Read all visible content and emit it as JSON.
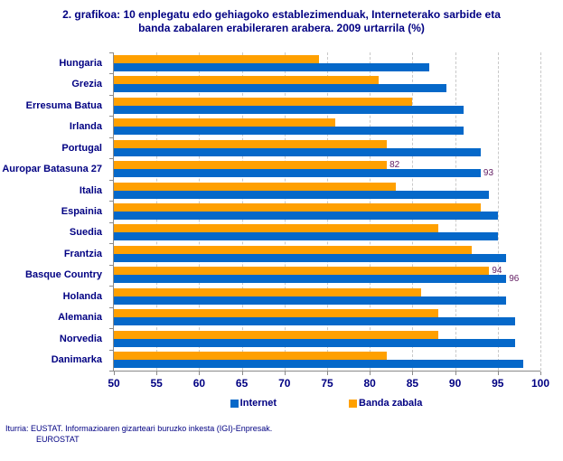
{
  "title": {
    "line1": "2. grafikoa: 10 enplegatu edo gehiagoko establezimenduak, Interneterako sarbide eta",
    "line2": "banda zabalaren erabileraren arabera. 2009 urtarrila (%)"
  },
  "chart_data": {
    "type": "bar",
    "orientation": "horizontal",
    "title": "2. grafikoa: 10 enplegatu edo gehiagoko establezimenduak, Interneterako sarbide eta banda zabalaren erabileraren arabera. 2009 urtarrila (%)",
    "categories": [
      "Hungaria",
      "Grezia",
      "Erresuma Batua",
      "Irlanda",
      "Portugal",
      "Auropar Batasuna 27",
      "Italia",
      "Espainia",
      "Suedia",
      "Frantzia",
      "Basque Country",
      "Holanda",
      "Alemania",
      "Norvedia",
      "Danimarka"
    ],
    "series": [
      {
        "name": "Internet",
        "color": "#0568C9",
        "values": [
          87,
          89,
          91,
          91,
          93,
          93,
          94,
          95,
          95,
          96,
          96,
          96,
          97,
          97,
          98
        ]
      },
      {
        "name": "Banda zabala",
        "color": "#FFA000",
        "values": [
          74,
          81,
          85,
          76,
          82,
          82,
          83,
          93,
          88,
          92,
          94,
          86,
          88,
          88,
          82
        ]
      }
    ],
    "value_labels": {
      "5": {
        "Internet": "93",
        "Banda zabala": "82"
      },
      "10": {
        "Internet": "96",
        "Banda zabala": "94"
      }
    },
    "xlim": [
      50,
      100
    ],
    "x_ticks": [
      "50",
      "55",
      "60",
      "65",
      "70",
      "75",
      "80",
      "85",
      "90",
      "95",
      "100"
    ],
    "grid": "vertical-dashed",
    "legend_position": "bottom",
    "value_label_color": "#621C62"
  },
  "legend": {
    "items": [
      {
        "label": "Internet",
        "color": "#0568C9"
      },
      {
        "label": "Banda zabala",
        "color": "#FFA000"
      }
    ]
  },
  "source": {
    "line1": "Iturria: EUSTAT. Informazioaren gizarteari buruzko inkesta (IGI)-Enpresak.",
    "line2": "EUROSTAT"
  },
  "colors": {
    "text_navy": "#000082",
    "axis_gray": "#8a8a8a",
    "gridline_gray": "#c9c9c9",
    "bar_blue": "#0568C9",
    "bar_orange": "#FFA000",
    "value_label_purple": "#621C62",
    "background": "#ffffff"
  }
}
